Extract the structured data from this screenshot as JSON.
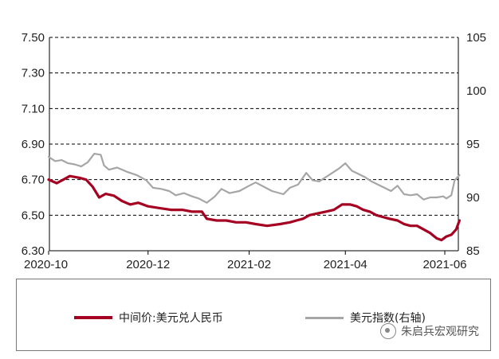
{
  "colors": {
    "series_primary": "#a50021",
    "series_secondary": "#a6a6a6",
    "gridline": "#000000",
    "axis": "#000000"
  },
  "legend": {
    "item1": "中间价:美元兑人民币",
    "item2": "美元指数(右轴)"
  },
  "watermark": {
    "text": "朱启兵宏观研究",
    "icon": "wechat-icon"
  },
  "chart_data": {
    "type": "line",
    "x_ticks": [
      "2020-10",
      "2020-12",
      "2021-02",
      "2021-04",
      "2021-06"
    ],
    "x_range": [
      "2020-10-01",
      "2021-06-10"
    ],
    "y_left": {
      "ylim": [
        6.3,
        7.5
      ],
      "ticks": [
        "7.50",
        "7.30",
        "7.10",
        "6.90",
        "6.70",
        "6.50",
        "6.30"
      ]
    },
    "y_right": {
      "ylim": [
        85,
        105
      ],
      "ticks": [
        "105",
        "100",
        "95",
        "90",
        "85"
      ]
    },
    "grid": {
      "horizontal": true,
      "dashed": true
    },
    "series": [
      {
        "name": "中间价:美元兑人民币",
        "axis": "left",
        "points": [
          [
            "2020-10-01",
            6.7
          ],
          [
            "2020-10-06",
            6.68
          ],
          [
            "2020-10-10",
            6.7
          ],
          [
            "2020-10-14",
            6.72
          ],
          [
            "2020-10-20",
            6.71
          ],
          [
            "2020-10-24",
            6.7
          ],
          [
            "2020-10-28",
            6.66
          ],
          [
            "2020-11-01",
            6.6
          ],
          [
            "2020-11-05",
            6.62
          ],
          [
            "2020-11-10",
            6.61
          ],
          [
            "2020-11-15",
            6.58
          ],
          [
            "2020-11-20",
            6.56
          ],
          [
            "2020-11-25",
            6.57
          ],
          [
            "2020-12-01",
            6.55
          ],
          [
            "2020-12-08",
            6.54
          ],
          [
            "2020-12-15",
            6.53
          ],
          [
            "2020-12-22",
            6.53
          ],
          [
            "2020-12-28",
            6.52
          ],
          [
            "2021-01-03",
            6.52
          ],
          [
            "2021-01-06",
            6.48
          ],
          [
            "2021-01-12",
            6.47
          ],
          [
            "2021-01-18",
            6.47
          ],
          [
            "2021-01-24",
            6.46
          ],
          [
            "2021-01-30",
            6.46
          ],
          [
            "2021-02-05",
            6.45
          ],
          [
            "2021-02-12",
            6.44
          ],
          [
            "2021-02-20",
            6.45
          ],
          [
            "2021-02-26",
            6.46
          ],
          [
            "2021-03-02",
            6.47
          ],
          [
            "2021-03-06",
            6.48
          ],
          [
            "2021-03-10",
            6.5
          ],
          [
            "2021-03-15",
            6.51
          ],
          [
            "2021-03-20",
            6.52
          ],
          [
            "2021-03-25",
            6.53
          ],
          [
            "2021-03-30",
            6.56
          ],
          [
            "2021-04-04",
            6.56
          ],
          [
            "2021-04-08",
            6.55
          ],
          [
            "2021-04-12",
            6.53
          ],
          [
            "2021-04-16",
            6.52
          ],
          [
            "2021-04-20",
            6.5
          ],
          [
            "2021-04-24",
            6.49
          ],
          [
            "2021-04-28",
            6.48
          ],
          [
            "2021-05-03",
            6.47
          ],
          [
            "2021-05-07",
            6.45
          ],
          [
            "2021-05-11",
            6.44
          ],
          [
            "2021-05-15",
            6.44
          ],
          [
            "2021-05-19",
            6.42
          ],
          [
            "2021-05-23",
            6.4
          ],
          [
            "2021-05-27",
            6.37
          ],
          [
            "2021-05-30",
            6.36
          ],
          [
            "2021-06-02",
            6.38
          ],
          [
            "2021-06-05",
            6.39
          ],
          [
            "2021-06-08",
            6.42
          ],
          [
            "2021-06-10",
            6.47
          ]
        ]
      },
      {
        "name": "美元指数(右轴)",
        "axis": "right",
        "points": [
          [
            "2020-10-01",
            93.8
          ],
          [
            "2020-10-05",
            93.4
          ],
          [
            "2020-10-09",
            93.5
          ],
          [
            "2020-10-13",
            93.2
          ],
          [
            "2020-10-17",
            93.1
          ],
          [
            "2020-10-21",
            92.9
          ],
          [
            "2020-10-25",
            93.3
          ],
          [
            "2020-10-29",
            94.1
          ],
          [
            "2020-11-02",
            94.0
          ],
          [
            "2020-11-04",
            93.0
          ],
          [
            "2020-11-07",
            92.6
          ],
          [
            "2020-11-12",
            92.8
          ],
          [
            "2020-11-18",
            92.4
          ],
          [
            "2020-11-24",
            92.1
          ],
          [
            "2020-11-30",
            91.6
          ],
          [
            "2020-12-04",
            90.9
          ],
          [
            "2020-12-09",
            90.8
          ],
          [
            "2020-12-14",
            90.6
          ],
          [
            "2020-12-18",
            90.2
          ],
          [
            "2020-12-23",
            90.4
          ],
          [
            "2020-12-28",
            90.1
          ],
          [
            "2021-01-01",
            89.9
          ],
          [
            "2021-01-06",
            89.5
          ],
          [
            "2021-01-11",
            90.1
          ],
          [
            "2021-01-15",
            90.8
          ],
          [
            "2021-01-20",
            90.4
          ],
          [
            "2021-01-26",
            90.6
          ],
          [
            "2021-02-01",
            91.1
          ],
          [
            "2021-02-05",
            91.4
          ],
          [
            "2021-02-10",
            91.0
          ],
          [
            "2021-02-15",
            90.6
          ],
          [
            "2021-02-22",
            90.3
          ],
          [
            "2021-02-26",
            90.9
          ],
          [
            "2021-03-03",
            91.2
          ],
          [
            "2021-03-08",
            92.3
          ],
          [
            "2021-03-12",
            91.6
          ],
          [
            "2021-03-16",
            91.5
          ],
          [
            "2021-03-20",
            91.9
          ],
          [
            "2021-03-24",
            92.3
          ],
          [
            "2021-03-28",
            92.7
          ],
          [
            "2021-04-01",
            93.2
          ],
          [
            "2021-04-05",
            92.5
          ],
          [
            "2021-04-09",
            92.2
          ],
          [
            "2021-04-13",
            91.9
          ],
          [
            "2021-04-17",
            91.5
          ],
          [
            "2021-04-21",
            91.2
          ],
          [
            "2021-04-25",
            90.9
          ],
          [
            "2021-04-29",
            90.6
          ],
          [
            "2021-05-03",
            91.1
          ],
          [
            "2021-05-07",
            90.3
          ],
          [
            "2021-05-11",
            90.2
          ],
          [
            "2021-05-15",
            90.3
          ],
          [
            "2021-05-19",
            89.8
          ],
          [
            "2021-05-23",
            90.0
          ],
          [
            "2021-05-27",
            90.0
          ],
          [
            "2021-05-31",
            90.1
          ],
          [
            "2021-06-02",
            89.9
          ],
          [
            "2021-06-05",
            90.2
          ],
          [
            "2021-06-07",
            91.6
          ],
          [
            "2021-06-10",
            92.1
          ]
        ]
      }
    ]
  }
}
